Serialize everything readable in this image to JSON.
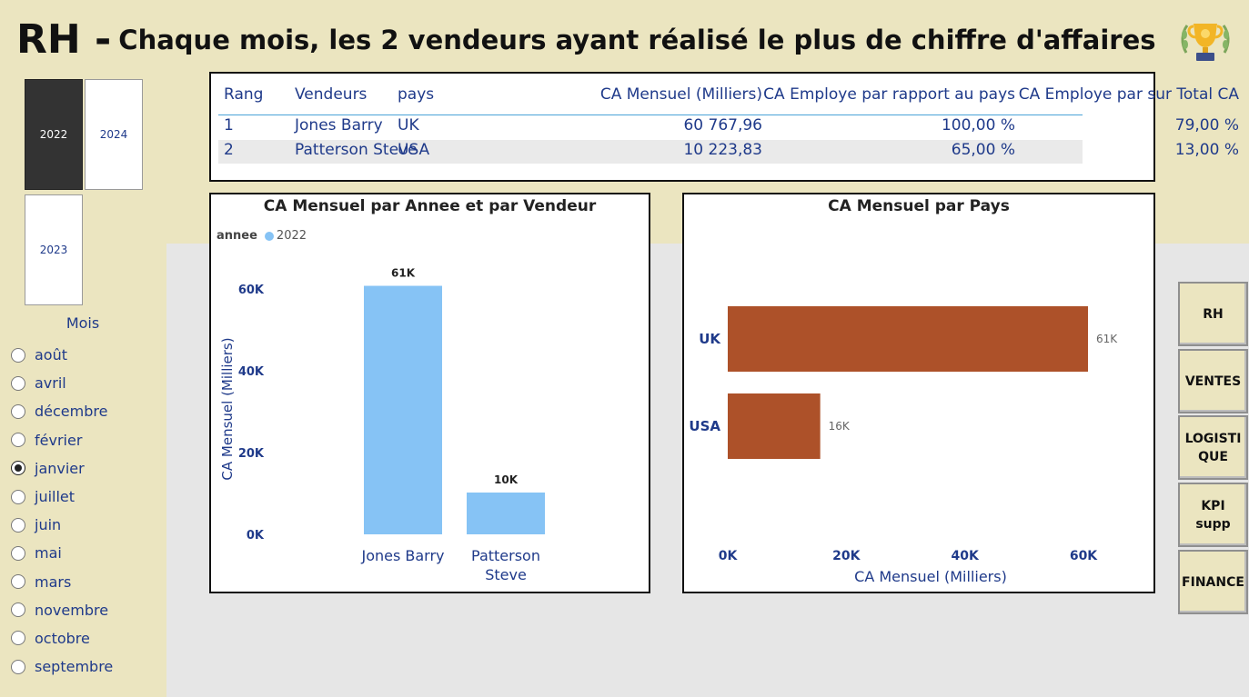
{
  "title": {
    "prefix": "RH -",
    "subtitle": "Chaque mois, les 2 vendeurs ayant réalisé le plus de chiffre d'affaires"
  },
  "years": [
    {
      "label": "2022",
      "selected": true
    },
    {
      "label": "2024",
      "selected": false
    },
    {
      "label": "2023",
      "selected": false
    }
  ],
  "mois": {
    "title": "Mois",
    "items": [
      {
        "label": "août",
        "checked": false
      },
      {
        "label": "avril",
        "checked": false
      },
      {
        "label": "décembre",
        "checked": false
      },
      {
        "label": "février",
        "checked": false
      },
      {
        "label": "janvier",
        "checked": true
      },
      {
        "label": "juillet",
        "checked": false
      },
      {
        "label": "juin",
        "checked": false
      },
      {
        "label": "mai",
        "checked": false
      },
      {
        "label": "mars",
        "checked": false
      },
      {
        "label": "novembre",
        "checked": false
      },
      {
        "label": "octobre",
        "checked": false
      },
      {
        "label": "septembre",
        "checked": false
      }
    ]
  },
  "table": {
    "headers": [
      "Rang",
      "Vendeurs",
      "pays",
      "CA Mensuel (Milliers)",
      "CA Employe par rapport au pays",
      "CA Employe par sur Total CA"
    ],
    "rows": [
      [
        "1",
        "Jones Barry",
        "UK",
        "60 767,96",
        "100,00 %",
        "79,00 %"
      ],
      [
        "2",
        "Patterson Steve",
        "USA",
        "10 223,83",
        "65,00 %",
        "13,00 %"
      ]
    ]
  },
  "chart_data": [
    {
      "type": "bar",
      "title": "CA Mensuel par Annee et par Vendeur",
      "legend_title": "annee",
      "series": [
        {
          "name": "2022",
          "values": [
            60.77,
            10.22
          ],
          "data_labels": [
            "61K",
            "10K"
          ]
        }
      ],
      "categories": [
        [
          "Jones Barry"
        ],
        [
          "Patterson",
          "Steve"
        ]
      ],
      "xlabel": "",
      "ylabel": "CA Mensuel (Milliers)",
      "ylim": [
        0,
        60
      ],
      "yticks": [
        0,
        20,
        40,
        60
      ],
      "ytick_labels": [
        "0K",
        "20K",
        "40K",
        "60K"
      ],
      "colors": {
        "bar": "#86c3f5",
        "axis_text": "#1f3a8a"
      },
      "grid": false,
      "legend_position": "top-left"
    },
    {
      "type": "bar",
      "orientation": "horizontal",
      "title": "CA Mensuel par Pays",
      "categories": [
        "UK",
        "USA"
      ],
      "values": [
        60.77,
        15.6
      ],
      "data_labels": [
        "61K",
        "16K"
      ],
      "xlabel": "CA Mensuel (Milliers)",
      "ylabel": "",
      "xlim": [
        0,
        60
      ],
      "xticks": [
        0,
        20,
        40,
        60
      ],
      "xtick_labels": [
        "0K",
        "20K",
        "40K",
        "60K"
      ],
      "colors": {
        "bar": "#ad5129",
        "axis_text": "#1f3a8a"
      },
      "grid": false
    }
  ],
  "nav": [
    {
      "label": "RH"
    },
    {
      "label": "VENTES"
    },
    {
      "label": "LOGISTI\nQUE"
    },
    {
      "label": "KPI supp"
    },
    {
      "label": "FINANCE"
    }
  ]
}
